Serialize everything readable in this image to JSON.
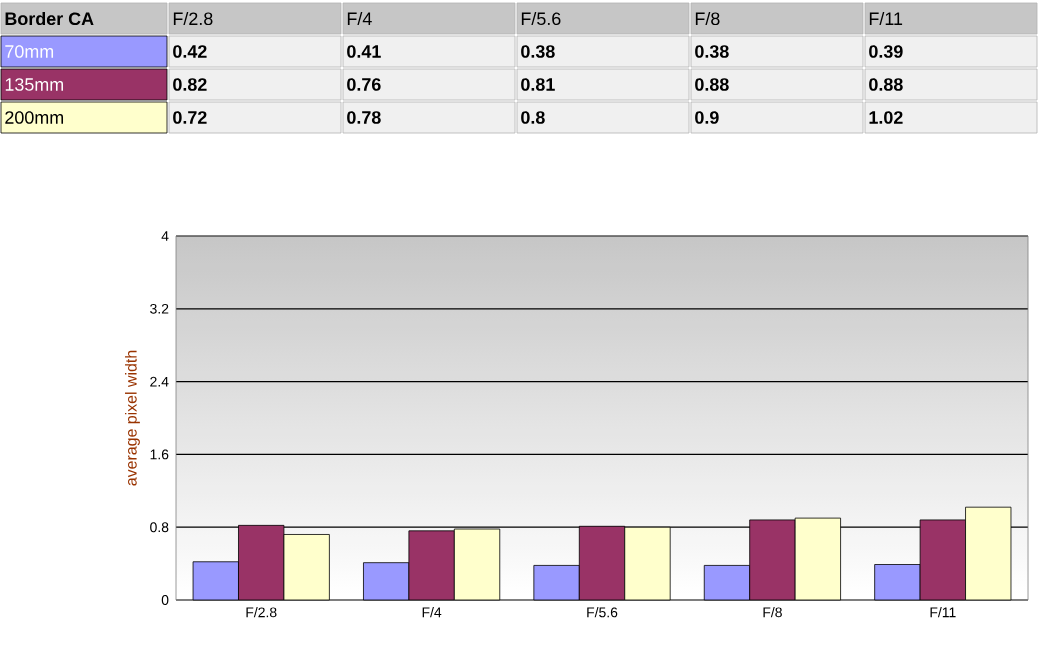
{
  "chart_data": {
    "type": "bar",
    "legend_title": "Border CA",
    "ylabel": "average pixel width",
    "categories": [
      "F/2.8",
      "F/4",
      "F/5.6",
      "F/8",
      "F/11"
    ],
    "series": [
      {
        "name": "70mm",
        "color": "#9999ff",
        "values": [
          0.42,
          0.41,
          0.38,
          0.38,
          0.39
        ]
      },
      {
        "name": "135mm",
        "color": "#993366",
        "values": [
          0.82,
          0.76,
          0.81,
          0.88,
          0.88
        ]
      },
      {
        "name": "200mm",
        "color": "#ffffcc",
        "values": [
          0.72,
          0.78,
          0.8,
          0.9,
          1.02
        ]
      }
    ],
    "ylim": [
      0,
      4
    ],
    "yticks": [
      0,
      0.8,
      1.6,
      2.4,
      3.2,
      4
    ],
    "grid": "y",
    "legend": "top",
    "data_labels": true
  }
}
